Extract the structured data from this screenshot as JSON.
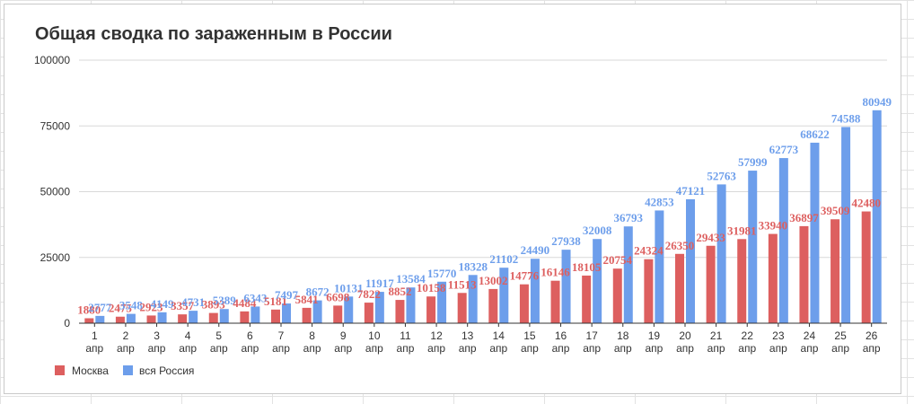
{
  "chart_data": {
    "type": "bar",
    "title": "Общая сводка по зараженным в России",
    "xlabel": "",
    "ylabel": "",
    "ylim": [
      0,
      100000
    ],
    "yticks": [
      0,
      25000,
      50000,
      75000,
      100000
    ],
    "grid": true,
    "legend_position": "bottom-left",
    "categories": [
      [
        "1",
        "апр"
      ],
      [
        "2",
        "апр"
      ],
      [
        "3",
        "апр"
      ],
      [
        "4",
        "апр"
      ],
      [
        "5",
        "апр"
      ],
      [
        "6",
        "апр"
      ],
      [
        "7",
        "апр"
      ],
      [
        "8",
        "апр"
      ],
      [
        "9",
        "апр"
      ],
      [
        "10",
        "апр"
      ],
      [
        "11",
        "апр"
      ],
      [
        "12",
        "апр"
      ],
      [
        "13",
        "апр"
      ],
      [
        "14",
        "апр"
      ],
      [
        "15",
        "апр"
      ],
      [
        "16",
        "апр"
      ],
      [
        "17",
        "апр"
      ],
      [
        "18",
        "апр"
      ],
      [
        "19",
        "апр"
      ],
      [
        "20",
        "апр"
      ],
      [
        "21",
        "апр"
      ],
      [
        "22",
        "апр"
      ],
      [
        "23",
        "апр"
      ],
      [
        "24",
        "апр"
      ],
      [
        "25",
        "апр"
      ],
      [
        "26",
        "апр"
      ]
    ],
    "series": [
      {
        "name": "Москва",
        "color": "#dd5f5f",
        "values": [
          1880,
          2475,
          2923,
          3357,
          3893,
          4484,
          5181,
          5841,
          6698,
          7822,
          8852,
          10158,
          11513,
          13002,
          14776,
          16146,
          18105,
          20754,
          24324,
          26350,
          29433,
          31981,
          33940,
          36897,
          39509,
          42480
        ]
      },
      {
        "name": "вся Россия",
        "color": "#6d9eeb",
        "values": [
          2777,
          3548,
          4149,
          4731,
          5389,
          6343,
          7497,
          8672,
          10131,
          11917,
          13584,
          15770,
          18328,
          21102,
          24490,
          27938,
          32008,
          36793,
          42853,
          47121,
          52763,
          57999,
          62773,
          68622,
          74588,
          80949
        ]
      }
    ]
  }
}
